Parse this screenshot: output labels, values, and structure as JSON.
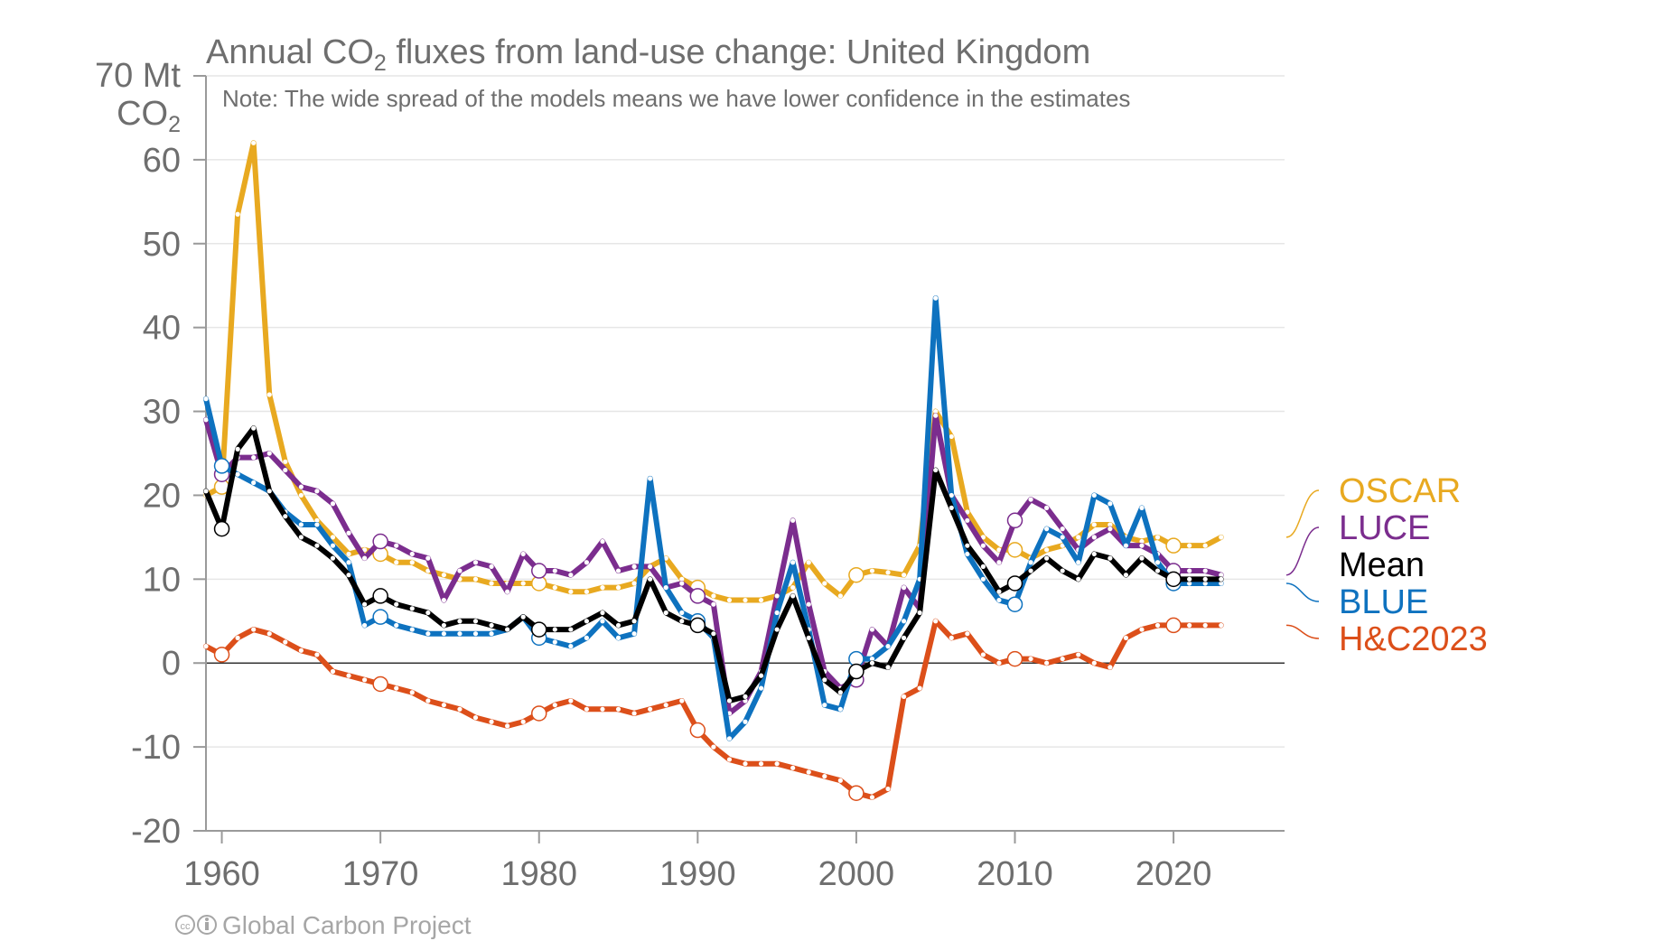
{
  "chart_data": {
    "type": "line",
    "title": "Annual CO",
    "title_sub": "2",
    "title_rest": " fluxes from land-use change: United Kingdom",
    "note": "Note: The wide spread of the models means we have lower confidence in the estimates",
    "ylabel_line1": "70 Mt",
    "ylabel_line2": "CO",
    "ylabel_sub": "2",
    "ylim": [
      -20,
      70
    ],
    "xlim": [
      1959,
      2027
    ],
    "yticks": [
      -20,
      -10,
      0,
      10,
      20,
      30,
      40,
      50,
      60
    ],
    "ytick_labels": [
      "-20",
      "-10",
      "0",
      "10",
      "20",
      "30",
      "40",
      "50",
      "60"
    ],
    "xticks": [
      1960,
      1970,
      1980,
      1990,
      2000,
      2010,
      2020
    ],
    "xtick_labels": [
      "1960",
      "1970",
      "1980",
      "1990",
      "2000",
      "2010",
      "2020"
    ],
    "grid": true,
    "legend_position": "right",
    "credit": "Global Carbon Project",
    "x": [
      1959,
      1960,
      1961,
      1962,
      1963,
      1964,
      1965,
      1966,
      1967,
      1968,
      1969,
      1970,
      1971,
      1972,
      1973,
      1974,
      1975,
      1976,
      1977,
      1978,
      1979,
      1980,
      1981,
      1982,
      1983,
      1984,
      1985,
      1986,
      1987,
      1988,
      1989,
      1990,
      1991,
      1992,
      1993,
      1994,
      1995,
      1996,
      1997,
      1998,
      1999,
      2000,
      2001,
      2002,
      2003,
      2004,
      2005,
      2006,
      2007,
      2008,
      2009,
      2010,
      2011,
      2012,
      2013,
      2014,
      2015,
      2016,
      2017,
      2018,
      2019,
      2020,
      2021,
      2022,
      2023
    ],
    "series": [
      {
        "name": "OSCAR",
        "color": "#e8a920",
        "values": [
          20,
          21,
          53.5,
          62,
          32,
          24,
          20,
          17,
          15,
          13,
          13.5,
          13,
          12,
          12,
          11,
          10.5,
          10,
          10,
          9.5,
          9.5,
          9.5,
          9.5,
          9,
          8.5,
          8.5,
          9,
          9,
          9.5,
          11.5,
          12.5,
          10,
          9,
          8,
          7.5,
          7.5,
          7.5,
          8,
          9,
          12,
          9.5,
          8,
          10.5,
          11,
          10.8,
          10.5,
          14,
          30,
          27,
          18,
          15,
          13.5,
          13.5,
          12.5,
          13.5,
          14,
          15,
          16.5,
          16.5,
          15,
          14.5,
          15,
          14,
          14,
          14,
          15
        ]
      },
      {
        "name": "LUCE",
        "color": "#7b2d8e",
        "values": [
          29,
          22.5,
          24.5,
          24.5,
          25,
          23,
          21,
          20.5,
          19,
          15.5,
          12.5,
          14.5,
          14,
          13,
          12.5,
          7.5,
          11,
          12,
          11.5,
          8.5,
          13,
          11,
          11,
          10.5,
          12,
          14.5,
          11,
          11.5,
          11.5,
          9,
          9.5,
          8,
          7,
          -6,
          -4.5,
          -1,
          8,
          17,
          7,
          -1,
          -3,
          -2,
          4,
          2,
          9,
          6.5,
          29.5,
          20,
          17,
          14,
          12,
          17,
          19.5,
          18.5,
          16,
          13.5,
          15,
          16,
          14,
          14,
          13,
          11,
          11,
          11,
          10.5
        ]
      },
      {
        "name": "Mean",
        "color": "#000000",
        "values": [
          20.5,
          16,
          25.5,
          28,
          20.5,
          17.5,
          15,
          14,
          12.5,
          10.5,
          7,
          8,
          7,
          6.5,
          6,
          4.5,
          5,
          5,
          4.5,
          4,
          5.5,
          4,
          4,
          4,
          5,
          6,
          4.5,
          5,
          10,
          6,
          5,
          4.5,
          3.5,
          -4.5,
          -4,
          -1.5,
          4,
          8,
          3,
          -2,
          -3.5,
          -1,
          0,
          -0.5,
          3,
          6,
          23,
          18.5,
          14,
          11.5,
          8.5,
          9.5,
          11,
          12.5,
          11,
          10,
          13,
          12.5,
          10.5,
          12.5,
          11,
          10,
          10,
          10,
          10
        ]
      },
      {
        "name": "BLUE",
        "color": "#0e72bf",
        "values": [
          31.5,
          23.5,
          22.5,
          21.5,
          20.5,
          18,
          16.5,
          16.5,
          14,
          12,
          4.5,
          5.5,
          4.5,
          4,
          3.5,
          3.5,
          3.5,
          3.5,
          3.5,
          4,
          5.5,
          3,
          2.5,
          2,
          3,
          5,
          3,
          3.5,
          22,
          9,
          6,
          5,
          3,
          -9,
          -7,
          -3,
          6,
          12,
          4,
          -5,
          -5.5,
          0.5,
          0.5,
          2,
          5,
          10,
          43.5,
          20,
          13,
          10,
          7.5,
          7,
          12,
          16,
          15,
          12,
          20,
          19,
          14,
          18.5,
          12,
          9.5,
          9.5,
          9.5,
          9.5
        ]
      },
      {
        "name": "H&C2023",
        "color": "#dc4f1a",
        "values": [
          2,
          1,
          3,
          4,
          3.5,
          2.5,
          1.5,
          1,
          -1,
          -1.5,
          -2,
          -2.5,
          -3,
          -3.5,
          -4.5,
          -5,
          -5.5,
          -6.5,
          -7,
          -7.5,
          -7,
          -6,
          -5,
          -4.5,
          -5.5,
          -5.5,
          -5.5,
          -6,
          -5.5,
          -5,
          -4.5,
          -8,
          -10,
          -11.5,
          -12,
          -12,
          -12,
          -12.5,
          -13,
          -13.5,
          -14,
          -15.5,
          -16,
          -15,
          -4,
          -3,
          5,
          3,
          3.5,
          1,
          0,
          0.5,
          0.5,
          0,
          0.5,
          1,
          0,
          -0.5,
          3,
          4,
          4.5,
          4.5,
          4.5,
          4.5,
          4.5
        ]
      }
    ]
  }
}
